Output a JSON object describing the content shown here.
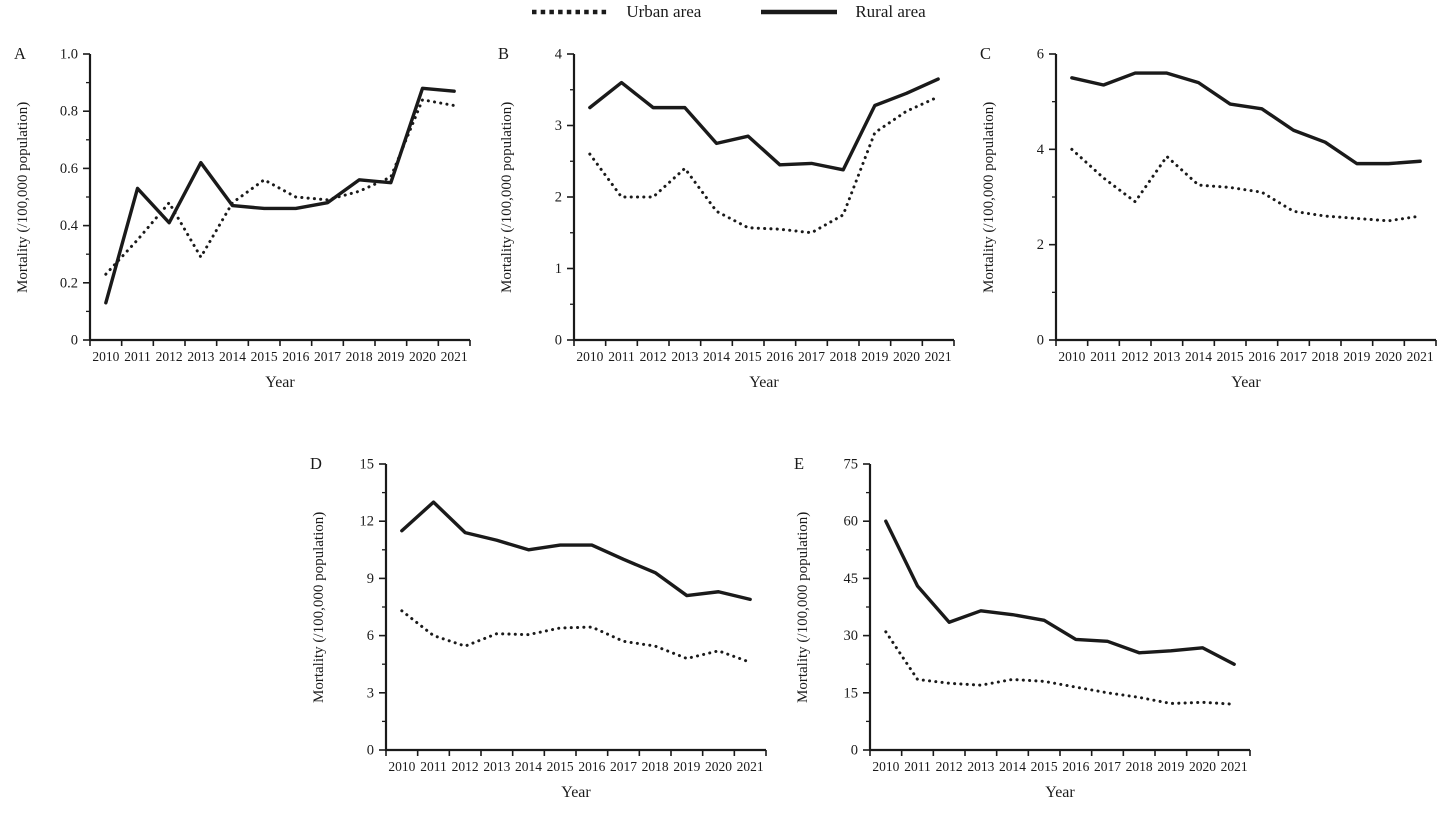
{
  "figure": {
    "background": "#ffffff",
    "line_color": "#1a1a1a",
    "legend": [
      {
        "label": "Urban area",
        "style": "dotted"
      },
      {
        "label": "Rural area",
        "style": "solid"
      }
    ],
    "xlabel": "Year",
    "ylabel": "Mortality (/100,000 population)"
  },
  "chart_data": [
    {
      "type": "line",
      "panel": "A",
      "xlabel": "Year",
      "ylabel": "Mortality (/100,000 population)",
      "x": [
        2010,
        2011,
        2012,
        2013,
        2014,
        2015,
        2016,
        2017,
        2018,
        2019,
        2020,
        2021
      ],
      "ylim": [
        0,
        1.0
      ],
      "yticks": [
        0,
        0.2,
        0.4,
        0.6,
        0.8,
        1.0
      ],
      "ytick_labels": [
        "0",
        "0.2",
        "0.4",
        "0.6",
        "0.8",
        "1.0"
      ],
      "grid": false,
      "series": [
        {
          "name": "Urban area",
          "style": "dotted",
          "values": [
            0.23,
            0.35,
            0.48,
            0.29,
            0.48,
            0.56,
            0.5,
            0.49,
            0.52,
            0.57,
            0.84,
            0.82
          ]
        },
        {
          "name": "Rural area",
          "style": "solid",
          "values": [
            0.13,
            0.53,
            0.41,
            0.62,
            0.47,
            0.46,
            0.46,
            0.48,
            0.56,
            0.55,
            0.88,
            0.87
          ]
        }
      ]
    },
    {
      "type": "line",
      "panel": "B",
      "xlabel": "Year",
      "ylabel": "Mortality (/100,000 population)",
      "x": [
        2010,
        2011,
        2012,
        2013,
        2014,
        2015,
        2016,
        2017,
        2018,
        2019,
        2020,
        2021
      ],
      "ylim": [
        0,
        4
      ],
      "yticks": [
        0,
        1,
        2,
        3,
        4
      ],
      "ytick_labels": [
        "0",
        "1",
        "2",
        "3",
        "4"
      ],
      "grid": false,
      "series": [
        {
          "name": "Urban area",
          "style": "dotted",
          "values": [
            2.6,
            2.0,
            2.0,
            2.4,
            1.8,
            1.57,
            1.55,
            1.5,
            1.75,
            2.9,
            3.2,
            3.4
          ]
        },
        {
          "name": "Rural area",
          "style": "solid",
          "values": [
            3.25,
            3.6,
            3.25,
            3.25,
            2.75,
            2.85,
            2.45,
            2.47,
            2.38,
            3.28,
            3.45,
            3.65
          ]
        }
      ]
    },
    {
      "type": "line",
      "panel": "C",
      "xlabel": "Year",
      "ylabel": "Mortality (/100,000 population)",
      "x": [
        2010,
        2011,
        2012,
        2013,
        2014,
        2015,
        2016,
        2017,
        2018,
        2019,
        2020,
        2021
      ],
      "ylim": [
        0,
        6
      ],
      "yticks": [
        0,
        2,
        4,
        6
      ],
      "ytick_labels": [
        "0",
        "2",
        "4",
        "6"
      ],
      "grid": false,
      "series": [
        {
          "name": "Urban area",
          "style": "dotted",
          "values": [
            4.0,
            3.4,
            2.9,
            3.85,
            3.25,
            3.2,
            3.1,
            2.7,
            2.6,
            2.55,
            2.5,
            2.6
          ]
        },
        {
          "name": "Rural area",
          "style": "solid",
          "values": [
            5.5,
            5.35,
            5.6,
            5.6,
            5.4,
            4.95,
            4.85,
            4.4,
            4.15,
            3.7,
            3.7,
            3.75
          ]
        }
      ]
    },
    {
      "type": "line",
      "panel": "D",
      "xlabel": "Year",
      "ylabel": "Mortality (/100,000 population)",
      "x": [
        2010,
        2011,
        2012,
        2013,
        2014,
        2015,
        2016,
        2017,
        2018,
        2019,
        2020,
        2021
      ],
      "ylim": [
        0,
        15
      ],
      "yticks": [
        0,
        3,
        6,
        9,
        12,
        15
      ],
      "ytick_labels": [
        "0",
        "3",
        "6",
        "9",
        "12",
        "15"
      ],
      "grid": false,
      "series": [
        {
          "name": "Urban area",
          "style": "dotted",
          "values": [
            7.3,
            6.0,
            5.45,
            6.1,
            6.05,
            6.4,
            6.45,
            5.7,
            5.45,
            4.8,
            5.2,
            4.6
          ]
        },
        {
          "name": "Rural area",
          "style": "solid",
          "values": [
            11.5,
            13.0,
            11.4,
            11.0,
            10.5,
            10.75,
            10.75,
            10.0,
            9.3,
            8.1,
            8.3,
            7.9
          ]
        }
      ]
    },
    {
      "type": "line",
      "panel": "E",
      "xlabel": "Year",
      "ylabel": "Mortality (/100,000 population)",
      "x": [
        2010,
        2011,
        2012,
        2013,
        2014,
        2015,
        2016,
        2017,
        2018,
        2019,
        2020,
        2021
      ],
      "ylim": [
        0,
        75
      ],
      "yticks": [
        0,
        15,
        30,
        45,
        60,
        75
      ],
      "ytick_labels": [
        "0",
        "15",
        "30",
        "45",
        "60",
        "75"
      ],
      "grid": false,
      "series": [
        {
          "name": "Urban area",
          "style": "dotted",
          "values": [
            31,
            18.5,
            17.5,
            17,
            18.5,
            18,
            16.5,
            15,
            13.8,
            12.2,
            12.5,
            12
          ]
        },
        {
          "name": "Rural area",
          "style": "solid",
          "values": [
            60,
            43,
            33.5,
            36.5,
            35.5,
            34,
            29,
            28.5,
            25.5,
            26,
            26.8,
            22.5
          ]
        }
      ]
    }
  ]
}
